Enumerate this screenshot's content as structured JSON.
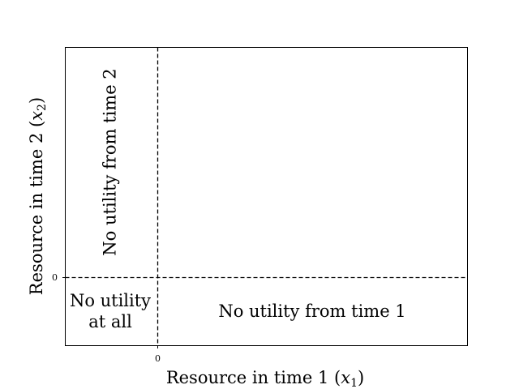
{
  "axes": {
    "xlabel_prefix": "Resource in time 1 (",
    "xlabel_var": "x",
    "xlabel_sub": "1",
    "xlabel_suffix": ")",
    "ylabel_prefix": "Resource in time 2 (",
    "ylabel_var": "x",
    "ylabel_sub": "2",
    "ylabel_suffix": ")",
    "xtick": "0",
    "ytick": "0"
  },
  "regions": {
    "top_left": "No utility from time 2",
    "bottom_left_line1": "No utility",
    "bottom_left_line2": "at all",
    "bottom_right": "No utility from time 1"
  }
}
